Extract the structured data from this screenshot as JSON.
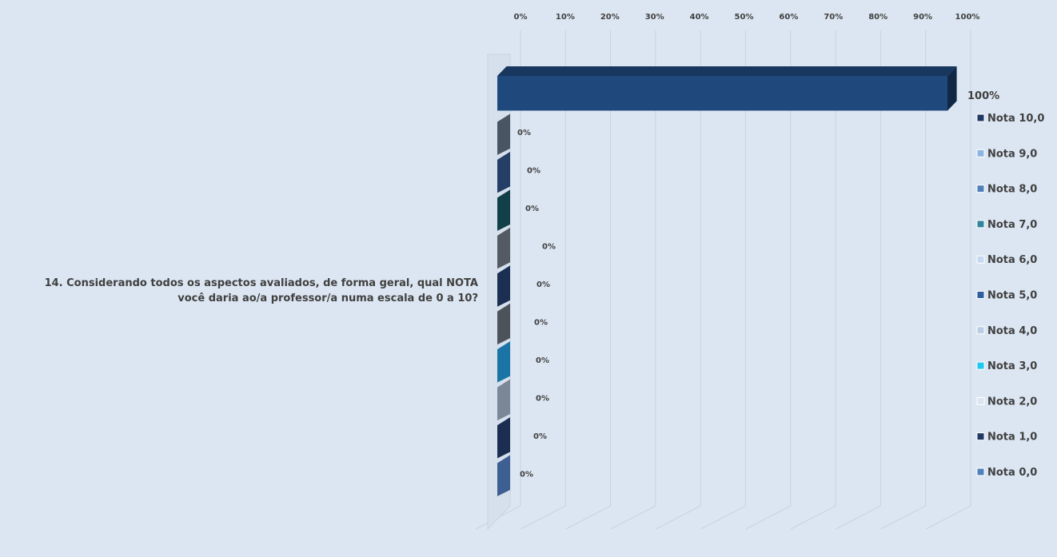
{
  "chart_data": {
    "type": "bar",
    "orientation": "horizontal",
    "style": "3d-clustered",
    "category": "14. Considerando todos os aspectos avaliados, de forma geral, qual NOTA você daria ao/a professor/a numa escala de 0 a 10?",
    "x_ticks": [
      "0%",
      "10%",
      "20%",
      "30%",
      "40%",
      "50%",
      "60%",
      "70%",
      "80%",
      "90%",
      "100%"
    ],
    "xlim": [
      0,
      100
    ],
    "legend_position": "right",
    "grid": true,
    "series": [
      {
        "name": "Nota 10,0",
        "value": 100,
        "label": "100%",
        "color": "#1f497d"
      },
      {
        "name": "Nota 9,0",
        "value": 0,
        "label": "0%",
        "color": "#4a5563"
      },
      {
        "name": "Nota 8,0",
        "value": 0,
        "label": "0%",
        "color": "#243e66"
      },
      {
        "name": "Nota 7,0",
        "value": 0,
        "label": "0%",
        "color": "#124048"
      },
      {
        "name": "Nota 6,0",
        "value": 0,
        "label": "0%",
        "color": "#535a63"
      },
      {
        "name": "Nota 5,0",
        "value": 0,
        "label": "0%",
        "color": "#1b2f52"
      },
      {
        "name": "Nota 4,0",
        "value": 0,
        "label": "0%",
        "color": "#4d535a"
      },
      {
        "name": "Nota 3,0",
        "value": 0,
        "label": "0%",
        "color": "#1a74a6"
      },
      {
        "name": "Nota 2,0",
        "value": 0,
        "label": "0%",
        "color": "#7b8796"
      },
      {
        "name": "Nota 1,0",
        "value": 0,
        "label": "0%",
        "color": "#1b2e52"
      },
      {
        "name": "Nota 0,0",
        "value": 0,
        "label": "0%",
        "color": "#3e5f92"
      }
    ],
    "legend_colors": [
      "#1f3864",
      "#8eb4e3",
      "#4f81bd",
      "#31859c",
      "#c6d9f1",
      "#2e5ea0",
      "#b9cde5",
      "#1ec8f0",
      "#dbe5f1",
      "#1f3864",
      "#4f81bd"
    ]
  }
}
